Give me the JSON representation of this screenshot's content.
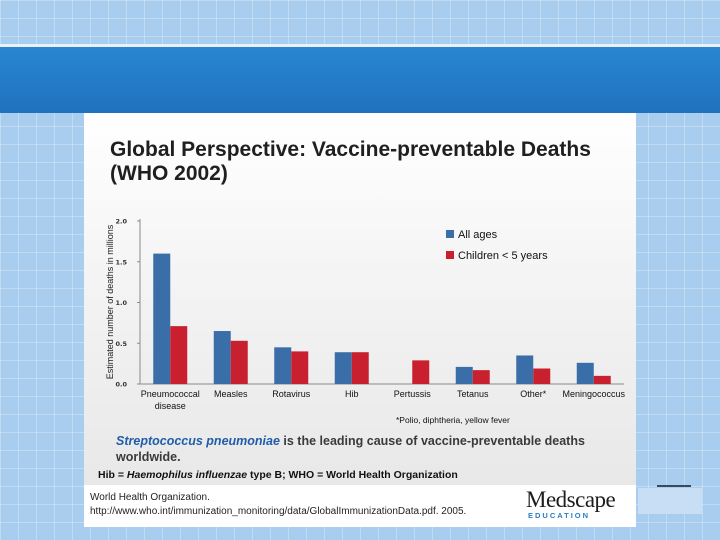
{
  "slide": {
    "title": "Global Perspective: Vaccine-preventable Deaths (WHO 2002)",
    "note_em": "Streptococcus pneumoniae",
    "note_rest": " is the leading cause of vaccine-preventable deaths worldwide.",
    "abbrev_hib": "Hib = ",
    "abbrev_hib_name": "Haemophilus influenzae",
    "abbrev_rest": " type B; WHO = World Health Organization",
    "reference_line1": "World Health Organization.",
    "reference_line2": "http://www.who.int/immunization_monitoring/data/GlobalImmunizationData.pdf. 2005.",
    "logo_name": "Medscape",
    "logo_sub": "EDUCATION"
  },
  "chart_data": {
    "type": "bar",
    "ylabel": "Estimated number of deaths in millions",
    "ylim": [
      0,
      2.0
    ],
    "yticks": [
      "0.0",
      "0.5",
      "1.0",
      "1.5",
      "2.0"
    ],
    "categories": [
      "Pneumococcal disease",
      "Measles",
      "Rotavirus",
      "Hib",
      "Pertussis",
      "Tetanus",
      "Other*",
      "Meningococcus"
    ],
    "category_lines": [
      [
        "Pneumococcal",
        "disease"
      ],
      [
        "Measles"
      ],
      [
        "Rotavirus"
      ],
      [
        "Hib"
      ],
      [
        "Pertussis"
      ],
      [
        "Tetanus"
      ],
      [
        "Other*"
      ],
      [
        "Meningococcus"
      ]
    ],
    "series": [
      {
        "name": "All ages",
        "color": "#3a6ea8",
        "values": [
          1.6,
          0.65,
          0.45,
          0.39,
          null,
          0.21,
          0.35,
          0.26
        ]
      },
      {
        "name": "Children < 5 years",
        "color": "#c8202e",
        "values": [
          0.71,
          0.53,
          0.4,
          0.39,
          0.29,
          0.17,
          0.19,
          0.1
        ]
      }
    ],
    "footnote": "*Polio, diphtheria, yellow fever"
  }
}
